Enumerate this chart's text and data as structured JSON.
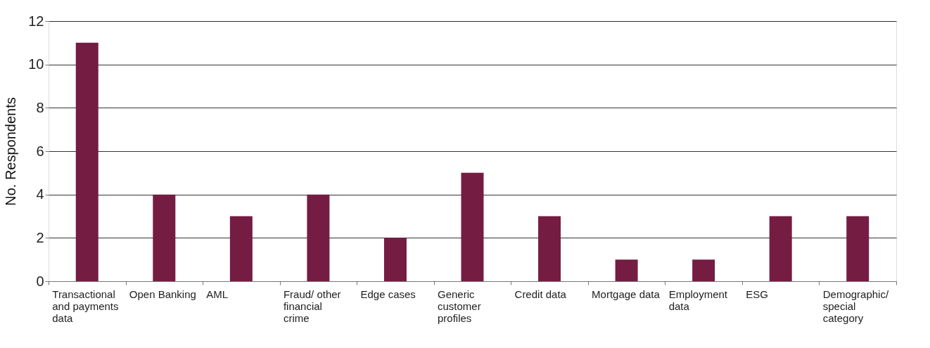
{
  "chart_data": {
    "type": "bar",
    "ylabel": "No. Respondents",
    "categories": [
      "Transactional and payments data",
      "Open Banking",
      "AML",
      "Fraud/ other financial crime",
      "Edge cases",
      "Generic customer profiles",
      "Credit data",
      "Mortgage data",
      "Employment data",
      "ESG",
      "Demographic/ special category"
    ],
    "series": [
      {
        "color": "#751c43",
        "values": [
          11,
          4,
          3,
          4,
          2,
          5,
          3,
          1,
          1,
          3,
          3
        ]
      }
    ],
    "ylim": [
      0,
      12
    ],
    "yticks": [
      0,
      2,
      4,
      6,
      8,
      10,
      12
    ],
    "grid": "y",
    "legend": false
  }
}
